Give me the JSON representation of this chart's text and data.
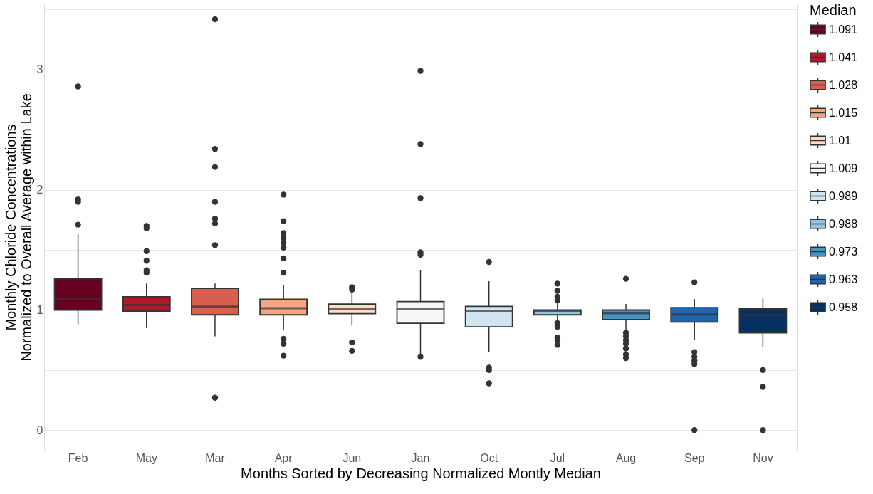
{
  "chart_data": {
    "type": "box",
    "xlabel": "Months Sorted by Decreasing Normalized Montly Median",
    "ylabel": "Monthly Chloride Concentrations\nNormalized to Overall Average within Lake",
    "legend_title": "Median",
    "legend": "right",
    "grid": "y",
    "categories": [
      "Feb",
      "May",
      "Mar",
      "Apr",
      "Jun",
      "Jan",
      "Oct",
      "Jul",
      "Aug",
      "Sep",
      "Nov"
    ],
    "ylim": [
      -0.17,
      3.55
    ],
    "yticks": [
      0,
      {
        "value": 0.5,
        "label": null
      },
      1,
      {
        "value": 1.5,
        "label": null
      },
      2,
      {
        "value": 2.5,
        "label": null
      },
      3,
      {
        "value": 3.5,
        "label": null
      }
    ],
    "series": [
      {
        "name": "1.091",
        "color": "#67001f",
        "boxes": [
          {
            "low": 0.88,
            "q1": 1.0,
            "median": 1.091,
            "q3": 1.26,
            "high": 1.63,
            "outliers": [
              2.86,
              1.92,
              1.9,
              1.71
            ]
          },
          null,
          null,
          null,
          null,
          null,
          null,
          null,
          null,
          null,
          null
        ]
      },
      {
        "name": "1.041",
        "color": "#b2182b",
        "boxes": [
          null,
          {
            "low": 0.85,
            "q1": 0.99,
            "median": 1.041,
            "q3": 1.11,
            "high": 1.22,
            "outliers": [
              1.7,
              1.68,
              1.49,
              1.41,
              1.33,
              1.31
            ]
          },
          null,
          null,
          null,
          null,
          null,
          null,
          null,
          null,
          null
        ]
      },
      {
        "name": "1.028",
        "color": "#d6604d",
        "boxes": [
          null,
          null,
          {
            "low": 0.78,
            "q1": 0.96,
            "median": 1.028,
            "q3": 1.18,
            "high": 1.22,
            "outliers": [
              3.42,
              2.34,
              2.19,
              1.9,
              1.76,
              1.72,
              1.54,
              0.27
            ]
          },
          null,
          null,
          null,
          null,
          null,
          null,
          null,
          null
        ]
      },
      {
        "name": "1.015",
        "color": "#f4a582",
        "boxes": [
          null,
          null,
          null,
          {
            "low": 0.83,
            "q1": 0.96,
            "median": 1.015,
            "q3": 1.09,
            "high": 1.21,
            "outliers": [
              1.96,
              1.74,
              1.64,
              1.6,
              1.56,
              1.52,
              1.43,
              1.31,
              0.76,
              0.72,
              0.62
            ]
          },
          null,
          null,
          null,
          null,
          null,
          null,
          null
        ]
      },
      {
        "name": "1.01",
        "color": "#fddbc7",
        "boxes": [
          null,
          null,
          null,
          null,
          {
            "low": 0.87,
            "q1": 0.97,
            "median": 1.01,
            "q3": 1.05,
            "high": 1.15,
            "outliers": [
              1.19,
              1.17,
              0.73,
              0.66
            ]
          },
          null,
          null,
          null,
          null,
          null,
          null
        ]
      },
      {
        "name": "1.009",
        "color": "#f7f7f7",
        "boxes": [
          null,
          null,
          null,
          null,
          null,
          {
            "low": 0.62,
            "q1": 0.89,
            "median": 1.009,
            "q3": 1.07,
            "high": 1.33,
            "outliers": [
              2.99,
              2.38,
              1.93,
              1.48,
              1.46,
              0.61
            ]
          },
          null,
          null,
          null,
          null,
          null
        ]
      },
      {
        "name": "0.989",
        "color": "#d1e5f0",
        "boxes": [
          null,
          null,
          null,
          null,
          null,
          null,
          {
            "low": 0.65,
            "q1": 0.86,
            "median": 0.989,
            "q3": 1.03,
            "high": 1.24,
            "outliers": [
              1.4,
              0.52,
              0.5,
              0.39
            ]
          },
          null,
          null,
          null,
          null
        ]
      },
      {
        "name": "0.988",
        "color": "#92c5de",
        "boxes": [
          null,
          null,
          null,
          null,
          null,
          null,
          null,
          {
            "low": 0.9,
            "q1": 0.96,
            "median": 0.988,
            "q3": 1.0,
            "high": 1.06,
            "outliers": [
              1.22,
              1.16,
              1.11,
              1.08,
              0.89,
              0.86,
              0.77,
              0.75,
              0.71
            ]
          },
          null,
          null,
          null
        ]
      },
      {
        "name": "0.973",
        "color": "#4393c3",
        "boxes": [
          null,
          null,
          null,
          null,
          null,
          null,
          null,
          null,
          {
            "low": 0.83,
            "q1": 0.92,
            "median": 0.973,
            "q3": 1.0,
            "high": 1.05,
            "outliers": [
              1.26,
              0.81,
              0.78,
              0.75,
              0.72,
              0.68,
              0.63,
              0.6
            ]
          },
          null,
          null
        ]
      },
      {
        "name": "0.963",
        "color": "#2166ac",
        "boxes": [
          null,
          null,
          null,
          null,
          null,
          null,
          null,
          null,
          null,
          {
            "low": 0.75,
            "q1": 0.9,
            "median": 0.963,
            "q3": 1.02,
            "high": 1.09,
            "outliers": [
              1.23,
              0.65,
              0.61,
              0.58,
              0.55,
              0.0
            ]
          },
          null
        ]
      },
      {
        "name": "0.958",
        "color": "#053061",
        "boxes": [
          null,
          null,
          null,
          null,
          null,
          null,
          null,
          null,
          null,
          null,
          {
            "low": 0.69,
            "q1": 0.81,
            "median": 0.958,
            "q3": 1.01,
            "high": 1.1,
            "outliers": [
              0.5,
              0.36,
              0.0
            ]
          }
        ]
      }
    ]
  }
}
